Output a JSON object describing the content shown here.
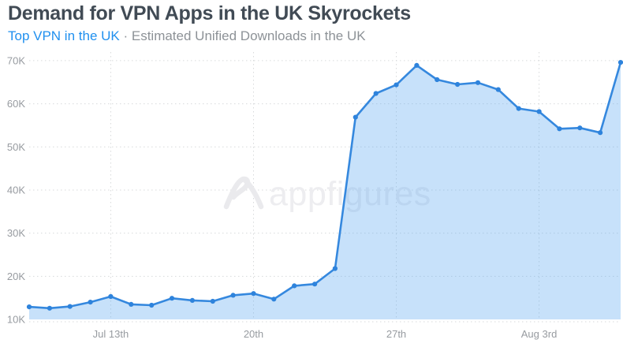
{
  "header": {
    "title": "Demand for VPN Apps in the UK Skyrockets",
    "subtitle_link": "Top VPN in the UK",
    "subtitle_rest": " · Estimated Unified Downloads in the UK"
  },
  "watermark": {
    "text": "appfigures",
    "logo": "appfigures-logo"
  },
  "colors": {
    "title_text": "#414b55",
    "subtitle_link": "#2090ef",
    "subtitle_text": "#8d9297",
    "line": "#3588de",
    "marker": "#2e83dc",
    "area_fill_rgba": "rgba(95,169,240,0.35)",
    "grid": "#d8dadb",
    "axis_text": "#979ba0",
    "watermark": "#ededf0",
    "background": "#ffffff"
  },
  "chart_data": {
    "type": "area",
    "title": "Demand for VPN Apps in the UK Skyrockets",
    "subtitle": "Top VPN in the UK · Estimated Unified Downloads in the UK",
    "ylabel": "Estimated Unified Downloads",
    "xlabel": "",
    "legend": "none",
    "grid": "dotted",
    "x": [
      "Jul 9",
      "Jul 10",
      "Jul 11",
      "Jul 12",
      "Jul 13",
      "Jul 14",
      "Jul 15",
      "Jul 16",
      "Jul 17",
      "Jul 18",
      "Jul 19",
      "Jul 20",
      "Jul 21",
      "Jul 22",
      "Jul 23",
      "Jul 24",
      "Jul 25",
      "Jul 26",
      "Jul 27",
      "Jul 28",
      "Jul 29",
      "Jul 30",
      "Jul 31",
      "Aug 1",
      "Aug 2",
      "Aug 3",
      "Aug 4",
      "Aug 5",
      "Aug 6",
      "Aug 7"
    ],
    "values": [
      12900,
      12600,
      13000,
      14000,
      15300,
      13500,
      13300,
      14900,
      14400,
      14200,
      15600,
      16000,
      14700,
      17800,
      18200,
      21800,
      56900,
      62400,
      64400,
      68900,
      65600,
      64500,
      64900,
      63300,
      58900,
      58200,
      54200,
      54400,
      53300,
      69600
    ],
    "ylim": [
      10000,
      72000
    ],
    "yticks": [
      10000,
      20000,
      30000,
      40000,
      50000,
      60000,
      70000
    ],
    "ytick_labels": [
      "10K",
      "20K",
      "30K",
      "40K",
      "50K",
      "60K",
      "70K"
    ],
    "xtick_indices": [
      4,
      11,
      18,
      25
    ],
    "xtick_labels": [
      "Jul 13th",
      "20th",
      "27th",
      "Aug 3rd"
    ]
  }
}
